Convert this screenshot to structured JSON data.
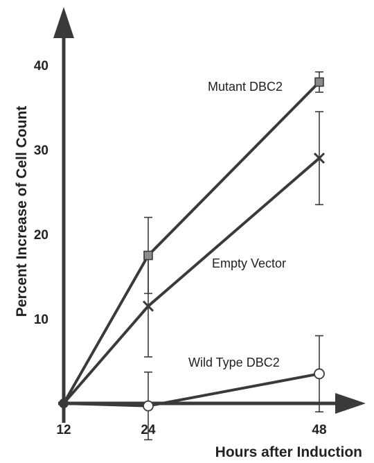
{
  "chart_data": {
    "type": "line",
    "xlabel": "Hours after Induction",
    "ylabel": "Percent Increase of Cell Count",
    "x_ticks": [
      "12",
      "24",
      "48"
    ],
    "x": [
      12,
      24,
      48
    ],
    "y_ticks": [
      "10",
      "20",
      "30",
      "40"
    ],
    "ylim": [
      0,
      43
    ],
    "grid": false,
    "series": [
      {
        "name": "Mutant DBC2",
        "marker": "square",
        "color": "#8a8a8a",
        "values": [
          0,
          17.5,
          38
        ],
        "error": [
          0,
          4.5,
          1.2
        ]
      },
      {
        "name": "Empty Vector",
        "marker": "x",
        "color": "#3a3a3a",
        "values": [
          0,
          11.5,
          29
        ],
        "error": [
          0,
          6,
          5.5
        ]
      },
      {
        "name": "Wild Type DBC2",
        "marker": "circle",
        "color": "#ffffff",
        "values": [
          0,
          -0.3,
          3.5
        ],
        "error": [
          0,
          4,
          4.5
        ]
      }
    ]
  }
}
